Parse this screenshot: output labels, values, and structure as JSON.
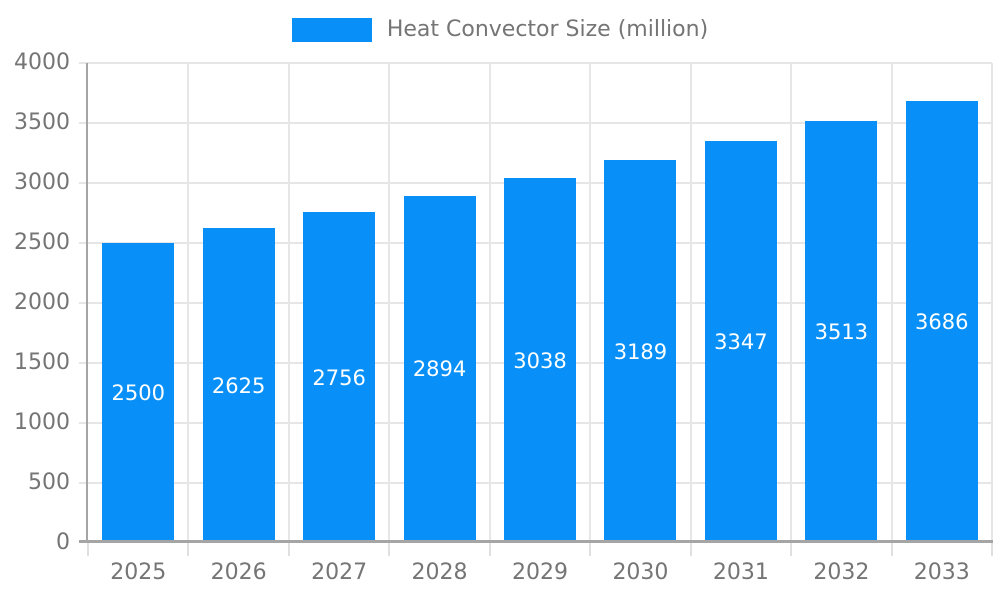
{
  "chart_data": {
    "type": "bar",
    "title": "Heat Convector Size (million)",
    "legend": [
      "Heat Convector Size (million)"
    ],
    "legend_position": "top",
    "categories": [
      "2025",
      "2026",
      "2027",
      "2028",
      "2029",
      "2030",
      "2031",
      "2032",
      "2033"
    ],
    "values": [
      2500,
      2625,
      2756,
      2894,
      3038,
      3189,
      3347,
      3513,
      3686
    ],
    "value_labels": [
      "2500",
      "2625",
      "2756",
      "2894",
      "3038",
      "3189",
      "3347",
      "3513",
      "3686"
    ],
    "xlabel": "",
    "ylabel": "",
    "ylim": [
      0,
      4000
    ],
    "yticks": [
      0,
      500,
      1000,
      1500,
      2000,
      2500,
      3000,
      3500,
      4000
    ],
    "ytick_labels": [
      "0",
      "500",
      "1000",
      "1500",
      "2000",
      "2500",
      "3000",
      "3500",
      "4000"
    ],
    "grid": true,
    "bar_value_labels_inside": true,
    "colors": {
      "bar": "#0890f8",
      "bar_label": "#ffffff",
      "axis_text": "#757575",
      "legend_text": "#757575",
      "grid_line": "#e6e6e6",
      "axis_line": "#a5a5a5",
      "outer_tick": "#e0e0e0",
      "background": "#ffffff"
    }
  }
}
